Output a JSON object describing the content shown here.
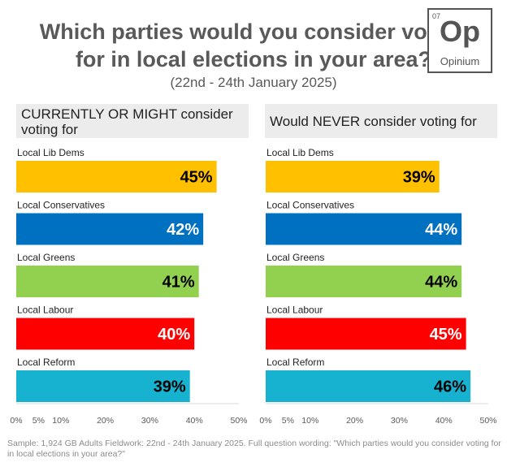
{
  "title_line1": "Which parties would you consider voting",
  "title_line2": "for in local elections in your area?",
  "subtitle": "(22nd - 24th January 2025)",
  "logo": {
    "number": "07",
    "symbol": "Op",
    "name": "Opinium"
  },
  "footnote": "Sample: 1,924 GB Adults Fieldwork: 22nd - 24th January 2025. Full question wording: \"Which parties would you consider voting for in local elections in your area?\"",
  "chart_data": [
    {
      "type": "bar",
      "title": "CURRENTLY OR MIGHT consider voting for",
      "categories": [
        "Local Lib Dems",
        "Local Conservatives",
        "Local Greens",
        "Local Labour",
        "Local Reform"
      ],
      "values": [
        45,
        42,
        41,
        40,
        39
      ],
      "colors": [
        "#FFC000",
        "#0070C0",
        "#92D050",
        "#FF0000",
        "#17B2CF"
      ],
      "xlim": [
        0,
        50
      ],
      "xticks": [
        "0%",
        "5%",
        "10%",
        "20%",
        "30%",
        "40%",
        "50%"
      ],
      "xtick_values": [
        0,
        5,
        10,
        20,
        30,
        40,
        50
      ],
      "value_suffix": "%",
      "orientation": "horizontal",
      "grid": false
    },
    {
      "type": "bar",
      "title": "Would NEVER consider voting for",
      "categories": [
        "Local Lib Dems",
        "Local Conservatives",
        "Local Greens",
        "Local Labour",
        "Local Reform"
      ],
      "values": [
        39,
        44,
        44,
        45,
        46
      ],
      "colors": [
        "#FFC000",
        "#0070C0",
        "#92D050",
        "#FF0000",
        "#17B2CF"
      ],
      "xlim": [
        0,
        50
      ],
      "xticks": [
        "0%",
        "5%",
        "10%",
        "20%",
        "30%",
        "40%",
        "50%"
      ],
      "xtick_values": [
        0,
        5,
        10,
        20,
        30,
        40,
        50
      ],
      "value_suffix": "%",
      "orientation": "horizontal",
      "grid": false
    }
  ]
}
